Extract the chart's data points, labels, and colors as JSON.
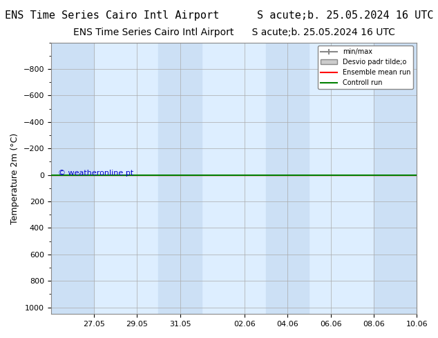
{
  "title": "ENS Time Series Cairo Intl Airport      S acute;b. 25.05.2024 16 UTC",
  "title_left": "ENS Time Series Cairo Intl Airport",
  "title_right": "S acute;b. 25.05.2024 16 UTC",
  "ylabel": "Temperature 2m (°C)",
  "ylabel_display": "Temperature 2m (°C)",
  "yticks": [
    -800,
    -600,
    -400,
    -200,
    0,
    200,
    400,
    600,
    800,
    1000
  ],
  "ylim": [
    -1000,
    1050
  ],
  "xlim_start": "2024-05-25",
  "xlim_end": "2024-06-12",
  "xtick_labels": [
    "27.05",
    "29.05",
    "31.05",
    "02.06",
    "04.06",
    "06.06",
    "08.06",
    "10.06"
  ],
  "background_color": "#ffffff",
  "plot_bg_color": "#ddeeff",
  "shaded_columns": [
    0,
    2,
    4,
    6
  ],
  "grid_color": "#cccccc",
  "ensemble_mean_color": "#ff0000",
  "control_run_color": "#008000",
  "minmax_color": "#888888",
  "shading_color": "#cce0f5",
  "watermark_text": "© weatheronline.pt",
  "watermark_color": "#0000cc",
  "legend_entries": [
    "min/max",
    "Desvio padr tilde;o",
    "Ensemble mean run",
    "Controll run"
  ],
  "horizontal_line_y": 0,
  "fontsize_title": 11,
  "fontsize_axis": 9,
  "fontsize_tick": 8
}
